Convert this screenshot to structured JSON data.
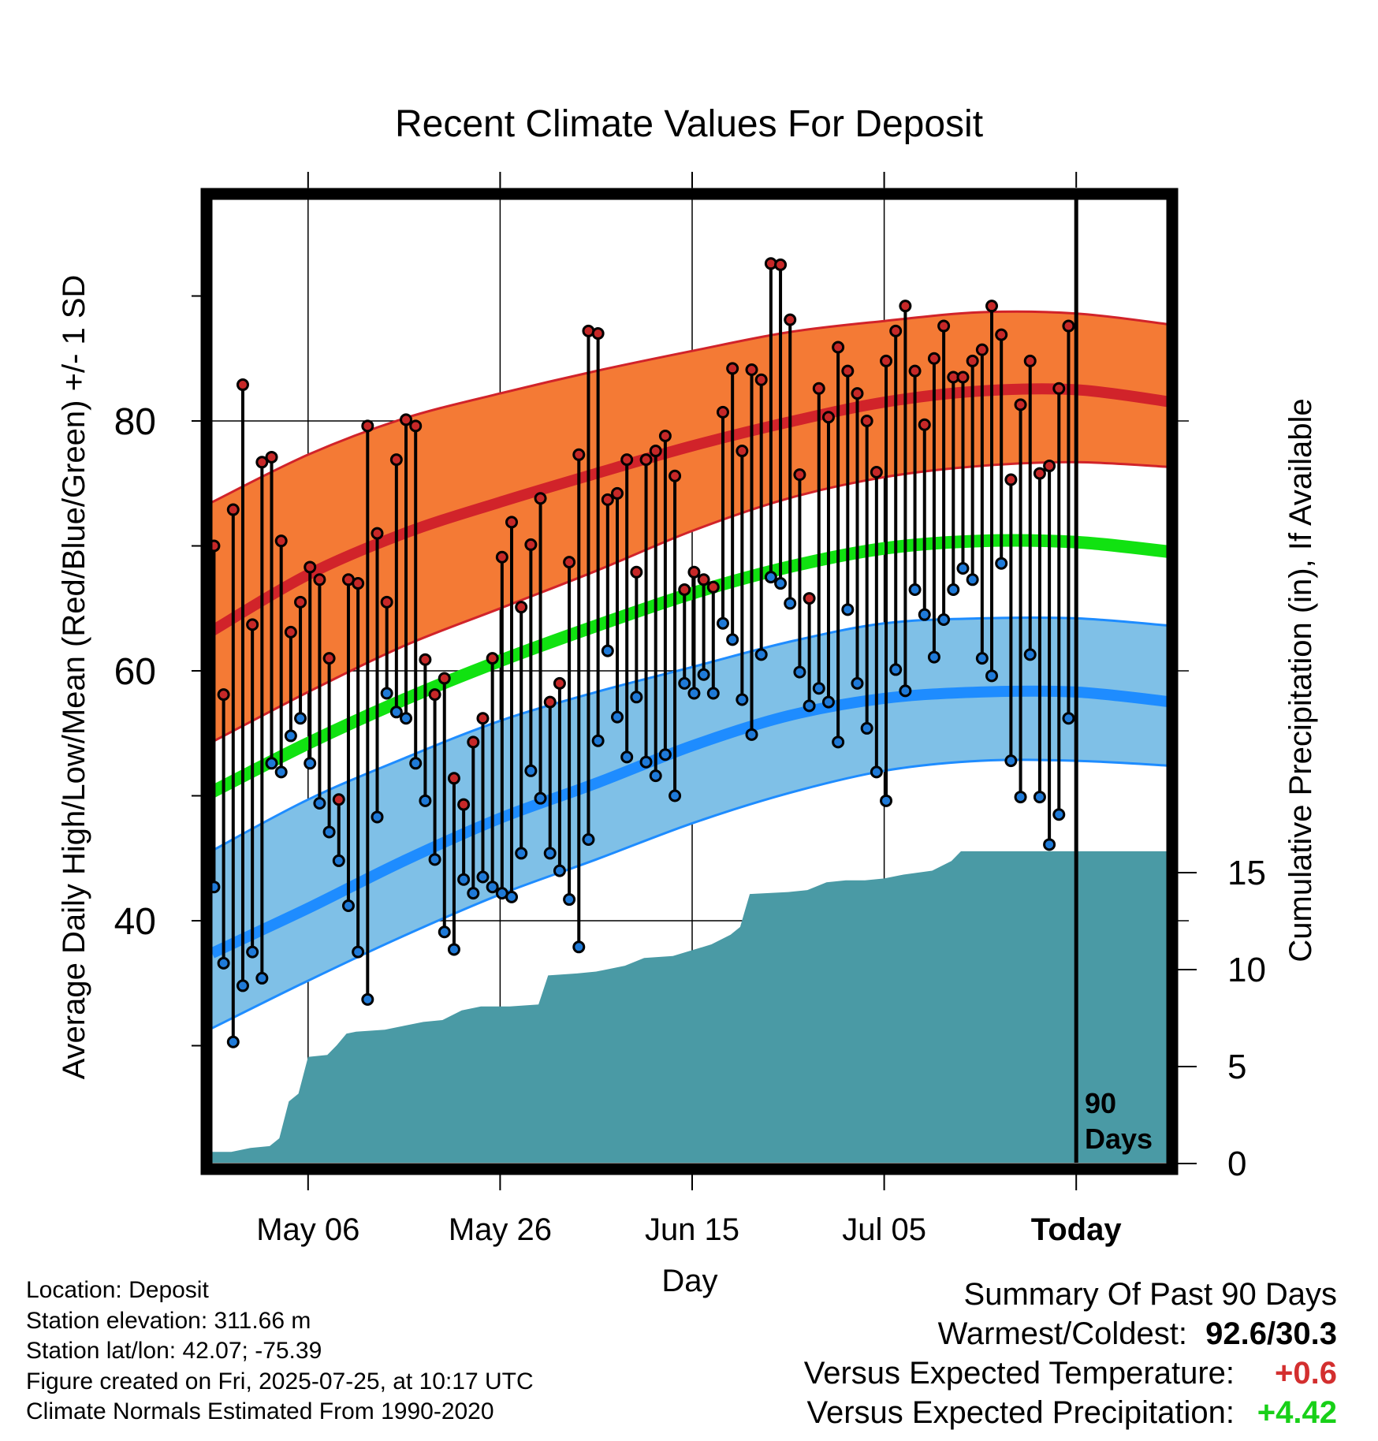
{
  "title": "Recent Climate Values For Deposit",
  "chart_data": {
    "type": "line",
    "xlabel": "Day",
    "ylabel_left": "Average Daily High/Low/Mean (Red/Blue/Green) +/- 1 SD",
    "ylabel_right": "Cumulative Precipitation (in), If Available",
    "left_ticks": [
      40,
      60,
      80
    ],
    "left_minor_ticks": [
      30,
      50,
      70,
      90
    ],
    "right_ticks": [
      0,
      5,
      10,
      15
    ],
    "ylim_left": [
      19.9,
      97.5
    ],
    "ylim_right": [
      -0.6,
      49.6
    ],
    "xlim_day": [
      0,
      100
    ],
    "x_ticks": [
      {
        "day": 10,
        "label": "May 06"
      },
      {
        "day": 30,
        "label": "May 26"
      },
      {
        "day": 50,
        "label": "Jun 15"
      },
      {
        "day": 70,
        "label": "Jul 05"
      },
      {
        "day": 90,
        "label": "Today"
      }
    ],
    "today_day": 90,
    "today_label": [
      "90",
      "Days"
    ],
    "normal_days": [
      0,
      10,
      20,
      30,
      40,
      50,
      60,
      70,
      80,
      90,
      100
    ],
    "normal_high_mean": [
      63.2,
      67.7,
      71.0,
      73.5,
      75.8,
      78.0,
      79.9,
      81.5,
      82.4,
      82.5,
      81.5
    ],
    "normal_high_upper": [
      73.5,
      77.3,
      80.2,
      82.2,
      84.0,
      85.6,
      87.1,
      88.0,
      88.7,
      88.6,
      87.7
    ],
    "normal_high_lower": [
      54.3,
      58.3,
      62.0,
      65.0,
      68.0,
      71.2,
      73.8,
      75.5,
      76.4,
      76.7,
      76.3
    ],
    "normal_low_mean": [
      37.4,
      41.0,
      44.8,
      48.2,
      51.0,
      54.0,
      56.4,
      57.8,
      58.3,
      58.3,
      57.5
    ],
    "normal_low_upper": [
      45.6,
      49.7,
      53.0,
      56.0,
      58.3,
      60.3,
      62.3,
      63.8,
      64.2,
      64.2,
      63.6
    ],
    "normal_low_lower": [
      31.4,
      35.2,
      38.8,
      42.1,
      44.9,
      47.8,
      50.2,
      52.0,
      52.8,
      52.8,
      52.4
    ],
    "normal_mean": [
      50.3,
      54.2,
      57.7,
      60.8,
      63.6,
      66.2,
      68.3,
      69.8,
      70.4,
      70.3,
      69.5
    ],
    "daily_high": [
      70.0,
      58.1,
      72.9,
      82.9,
      63.7,
      76.7,
      77.1,
      70.4,
      63.1,
      65.5,
      68.3,
      67.3,
      61.0,
      49.7,
      67.3,
      67.0,
      79.6,
      71.0,
      65.5,
      76.9,
      80.1,
      79.6,
      60.9,
      58.1,
      59.4,
      51.4,
      49.3,
      54.3,
      56.2,
      61.0,
      69.1,
      71.9,
      65.1,
      70.1,
      73.8,
      57.5,
      59.0,
      68.7,
      77.3,
      87.2,
      87.0,
      73.7,
      74.2,
      76.9,
      67.9,
      76.9,
      77.6,
      78.8,
      75.6,
      66.5,
      67.9,
      67.3,
      66.7,
      80.7,
      84.2,
      77.6,
      84.1,
      83.3,
      92.6,
      92.5,
      88.1,
      75.7,
      65.8,
      82.6,
      80.3,
      85.9,
      84.0,
      82.2,
      80.0,
      75.9,
      84.8,
      87.2,
      89.2,
      84.0,
      79.7,
      85.0,
      87.6,
      83.5,
      83.5,
      84.8,
      85.7,
      89.2,
      86.9,
      75.3,
      81.3,
      84.8,
      75.8,
      76.4,
      82.6,
      87.6
    ],
    "daily_low": [
      42.7,
      36.6,
      30.3,
      34.8,
      37.5,
      35.4,
      52.6,
      51.9,
      54.8,
      56.2,
      52.6,
      49.4,
      47.1,
      44.8,
      41.2,
      37.5,
      33.7,
      48.3,
      58.2,
      56.7,
      56.2,
      52.6,
      49.6,
      44.9,
      39.1,
      37.7,
      43.3,
      42.2,
      43.5,
      42.7,
      42.2,
      41.9,
      45.4,
      52.0,
      49.8,
      45.4,
      44.0,
      41.7,
      37.9,
      46.5,
      54.4,
      61.6,
      56.3,
      53.1,
      57.9,
      52.7,
      51.6,
      53.3,
      50.0,
      59.0,
      58.2,
      59.7,
      58.2,
      63.8,
      62.5,
      57.7,
      54.9,
      61.3,
      67.5,
      67.0,
      65.4,
      59.9,
      57.2,
      58.6,
      57.5,
      54.3,
      64.9,
      59.0,
      55.4,
      51.9,
      49.6,
      60.1,
      58.4,
      66.5,
      64.5,
      61.1,
      64.1,
      66.5,
      68.2,
      67.3,
      61.0,
      59.6,
      68.6,
      52.8,
      49.9,
      61.3,
      49.9,
      46.1,
      48.5,
      56.2
    ],
    "cumulative_precip": [
      {
        "d": 0,
        "v": 0.6
      },
      {
        "d": 2,
        "v": 0.6
      },
      {
        "d": 4,
        "v": 0.8
      },
      {
        "d": 6,
        "v": 0.9
      },
      {
        "d": 7,
        "v": 1.3
      },
      {
        "d": 8,
        "v": 3.2
      },
      {
        "d": 9,
        "v": 3.6
      },
      {
        "d": 10,
        "v": 5.5
      },
      {
        "d": 12,
        "v": 5.6
      },
      {
        "d": 13,
        "v": 6.1
      },
      {
        "d": 14,
        "v": 6.7
      },
      {
        "d": 15,
        "v": 6.8
      },
      {
        "d": 18,
        "v": 6.9
      },
      {
        "d": 20,
        "v": 7.1
      },
      {
        "d": 22,
        "v": 7.3
      },
      {
        "d": 24,
        "v": 7.4
      },
      {
        "d": 26,
        "v": 7.9
      },
      {
        "d": 28,
        "v": 8.1
      },
      {
        "d": 31,
        "v": 8.1
      },
      {
        "d": 34,
        "v": 8.2
      },
      {
        "d": 35,
        "v": 9.7
      },
      {
        "d": 38,
        "v": 9.8
      },
      {
        "d": 40,
        "v": 9.9
      },
      {
        "d": 43,
        "v": 10.2
      },
      {
        "d": 45,
        "v": 10.6
      },
      {
        "d": 48,
        "v": 10.7
      },
      {
        "d": 50,
        "v": 11.0
      },
      {
        "d": 52,
        "v": 11.3
      },
      {
        "d": 54,
        "v": 11.8
      },
      {
        "d": 55,
        "v": 12.2
      },
      {
        "d": 56,
        "v": 13.9
      },
      {
        "d": 60,
        "v": 14.0
      },
      {
        "d": 62,
        "v": 14.1
      },
      {
        "d": 64,
        "v": 14.5
      },
      {
        "d": 66,
        "v": 14.6
      },
      {
        "d": 68,
        "v": 14.6
      },
      {
        "d": 70,
        "v": 14.7
      },
      {
        "d": 72,
        "v": 14.9
      },
      {
        "d": 75,
        "v": 15.1
      },
      {
        "d": 77,
        "v": 15.6
      },
      {
        "d": 78,
        "v": 16.1
      },
      {
        "d": 80,
        "v": 16.1
      },
      {
        "d": 90,
        "v": 16.1
      },
      {
        "d": 100,
        "v": 16.1
      }
    ],
    "colors": {
      "high_band": "#f47a35",
      "high_line": "#d1232a",
      "low_band": "#7fc0e7",
      "low_line": "#1e8cff",
      "mean_line": "#11e211",
      "precip_fill": "#4a9aa5",
      "high_dot": "#c62828",
      "low_dot": "#1f7ad8"
    }
  },
  "footer": {
    "location": "Location: Deposit",
    "elevation": "Station elevation: 311.66 m",
    "latlon": "Station lat/lon: 42.07; -75.39",
    "created": "Figure created on Fri, 2025-07-25, at 10:17 UTC",
    "normals": "Climate Normals Estimated From 1990-2020"
  },
  "summary": {
    "heading": "Summary Of Past 90 Days",
    "warmest_coldest_label": "Warmest/Coldest:",
    "warmest_coldest_value": "92.6/30.3",
    "temp_label": "Versus Expected Temperature:",
    "temp_value": "+0.6",
    "temp_color": "#d32f2f",
    "precip_label": "Versus Expected Precipitation:",
    "precip_value": "+4.42",
    "precip_color": "#18d018"
  }
}
